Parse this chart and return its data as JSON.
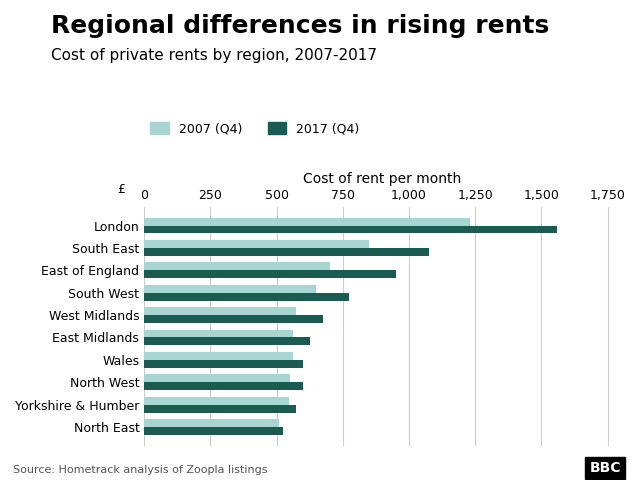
{
  "title": "Regional differences in rising rents",
  "subtitle": "Cost of private rents by region, 2007-2017",
  "xlabel": "Cost of rent per month",
  "xlabel_prefix": "£",
  "source": "Source: Hometrack analysis of Zoopla listings",
  "legend": [
    "2007 (Q4)",
    "2017 (Q4)"
  ],
  "color_2007": "#a8d5d1",
  "color_2017": "#1a5c52",
  "background_color": "#ffffff",
  "regions": [
    "London",
    "South East",
    "East of England",
    "South West",
    "West Midlands",
    "East Midlands",
    "Wales",
    "North West",
    "Yorkshire & Humber",
    "North East"
  ],
  "values_2007": [
    1230,
    850,
    700,
    650,
    575,
    560,
    560,
    550,
    545,
    510
  ],
  "values_2017": [
    1560,
    1075,
    950,
    775,
    675,
    625,
    600,
    600,
    575,
    525
  ],
  "xticks": [
    0,
    250,
    500,
    750,
    1000,
    1250,
    1500,
    1750
  ],
  "xlim": [
    0,
    1800
  ],
  "title_fontsize": 18,
  "subtitle_fontsize": 11,
  "axis_label_fontsize": 10,
  "tick_fontsize": 9,
  "bar_height": 0.35
}
